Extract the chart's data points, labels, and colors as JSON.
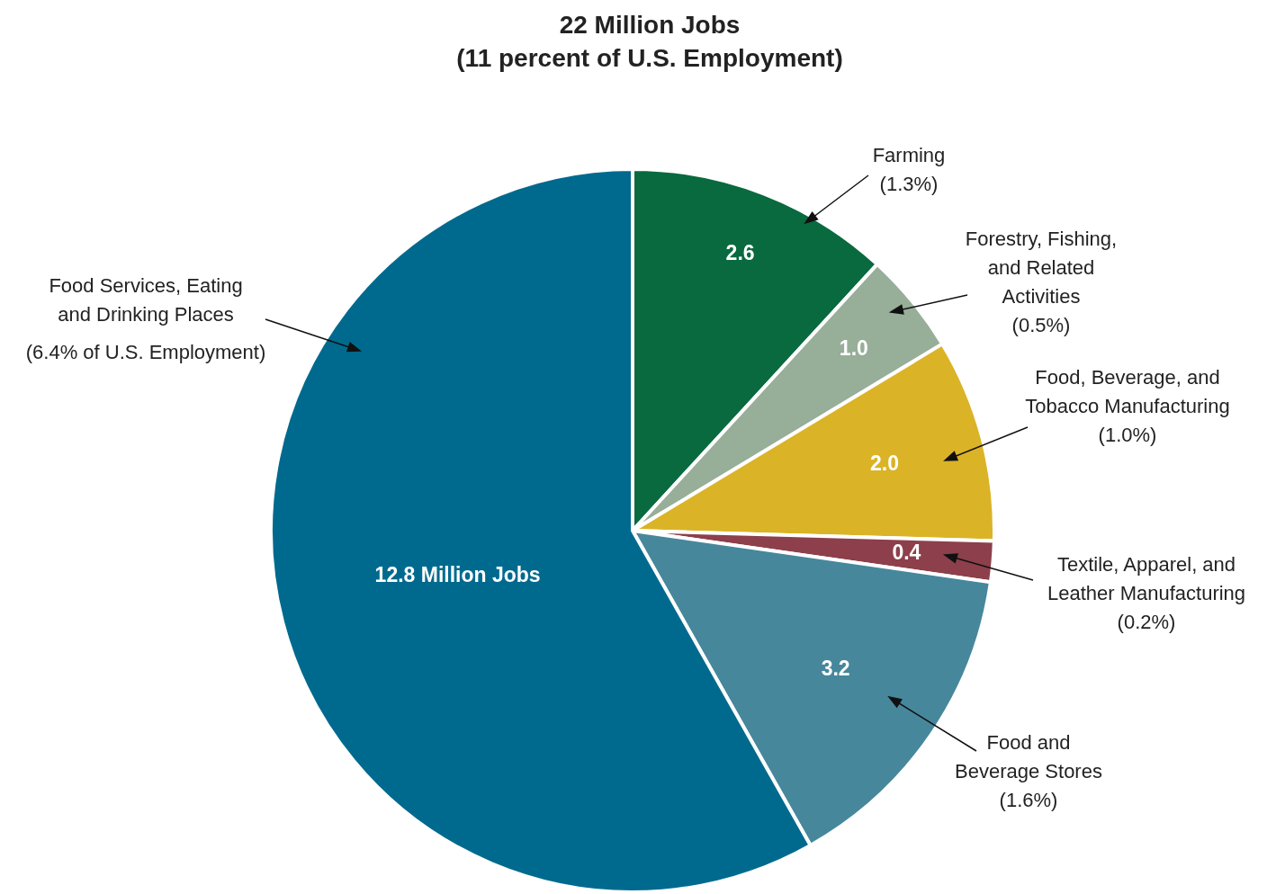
{
  "chart_data": {
    "type": "pie",
    "title": "22 Million Jobs",
    "subtitle": "(11 percent of U.S. Employment)",
    "categories": [
      "Farming",
      "Forestry, Fishing, and Related Activities",
      "Food, Beverage, and Tobacco Manufacturing",
      "Textile, Apparel, and Leather Manufacturing",
      "Food and Beverage Stores",
      "Food Services, Eating and Drinking Places"
    ],
    "values": [
      2.6,
      1.0,
      2.0,
      0.4,
      3.2,
      12.8
    ],
    "colors": [
      "#086a3e",
      "#97ae98",
      "#dbb327",
      "#8d3f4b",
      "#47879c",
      "#006a8e"
    ],
    "value_labels": [
      "2.6",
      "1.0",
      "2.0",
      "0.4",
      "3.2",
      "12.8 Million Jobs"
    ],
    "annotations": [
      "(1.3%)",
      "(0.5%)",
      "(1.0%)",
      "(0.2%)",
      "(1.6%)",
      "(6.4% of U.S. Employment)"
    ]
  }
}
